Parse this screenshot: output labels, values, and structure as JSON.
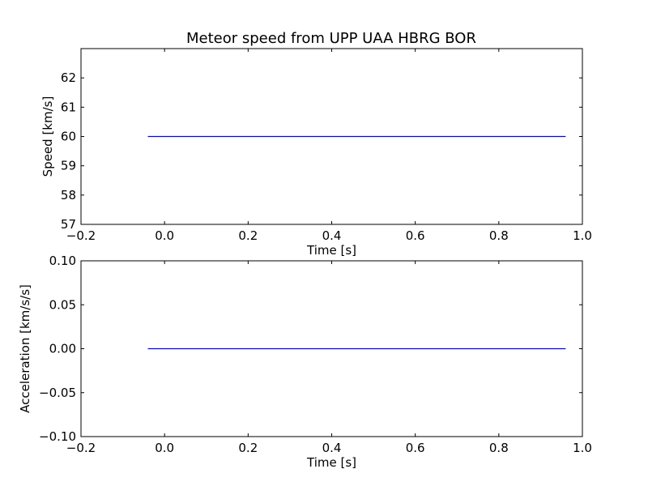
{
  "figure": {
    "title": "Meteor speed from  UPP UAA HBRG BOR"
  },
  "chart_data": [
    {
      "type": "line",
      "title": "Meteor speed from  UPP UAA HBRG BOR",
      "xlabel": "Time [s]",
      "ylabel": "Speed [km/s]",
      "xlim": [
        -0.2,
        1.0
      ],
      "ylim": [
        57,
        63
      ],
      "x_ticks": [
        "−0.2",
        "0.0",
        "0.2",
        "0.4",
        "0.6",
        "0.8",
        "1.0"
      ],
      "x_tick_values": [
        -0.2,
        0.0,
        0.2,
        0.4,
        0.6,
        0.8,
        1.0
      ],
      "y_ticks": [
        "57",
        "58",
        "59",
        "60",
        "61",
        "62"
      ],
      "y_tick_values": [
        57,
        58,
        59,
        60,
        61,
        62
      ],
      "grid": false,
      "series": [
        {
          "color": "#0000ff",
          "x": [
            -0.04,
            0.96
          ],
          "y": [
            60,
            60
          ]
        }
      ]
    },
    {
      "type": "line",
      "title": "",
      "xlabel": "Time [s]",
      "ylabel": "Acceleration [km/s/s]",
      "xlim": [
        -0.2,
        1.0
      ],
      "ylim": [
        -0.1,
        0.1
      ],
      "x_ticks": [
        "−0.2",
        "0.0",
        "0.2",
        "0.4",
        "0.6",
        "0.8",
        "1.0"
      ],
      "x_tick_values": [
        -0.2,
        0.0,
        0.2,
        0.4,
        0.6,
        0.8,
        1.0
      ],
      "y_ticks": [
        "−0.10",
        "−0.05",
        "0.00",
        "0.05",
        "0.10"
      ],
      "y_tick_values": [
        -0.1,
        -0.05,
        0.0,
        0.05,
        0.1
      ],
      "grid": false,
      "series": [
        {
          "color": "#0000ff",
          "x": [
            -0.04,
            0.96
          ],
          "y": [
            0,
            0
          ]
        }
      ]
    }
  ]
}
